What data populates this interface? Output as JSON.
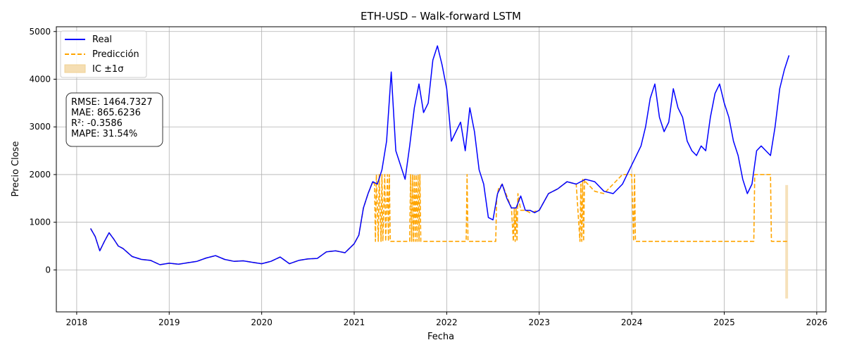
{
  "chart_data": {
    "type": "line",
    "title": "ETH-USD – Walk-forward LSTM",
    "xlabel": "Fecha",
    "ylabel": "Precio Close",
    "xlim": [
      2017.78,
      2026.1
    ],
    "ylim": [
      -880,
      5100
    ],
    "x_ticks": [
      2018,
      2019,
      2020,
      2021,
      2022,
      2023,
      2024,
      2025,
      2026
    ],
    "x_tick_labels": [
      "2018",
      "2019",
      "2020",
      "2021",
      "2022",
      "2023",
      "2024",
      "2025",
      "2026"
    ],
    "y_ticks": [
      0,
      1000,
      2000,
      3000,
      4000,
      5000
    ],
    "y_tick_labels": [
      "0",
      "1000",
      "2000",
      "3000",
      "4000",
      "5000"
    ],
    "grid": true,
    "legend_position": "top-left",
    "stats_box": [
      "RMSE: 1464.7327",
      "MAE: 865.6236",
      "R²: -0.3586",
      "MAPE: 31.54%"
    ],
    "colors": {
      "real": "#0000ff",
      "prediccion": "#ffa500",
      "ic": "#f5deb3"
    },
    "series": [
      {
        "name": "Real",
        "style": "solid",
        "x": [
          2018.15,
          2018.2,
          2018.25,
          2018.3,
          2018.35,
          2018.4,
          2018.45,
          2018.5,
          2018.6,
          2018.7,
          2018.8,
          2018.9,
          2019.0,
          2019.1,
          2019.2,
          2019.3,
          2019.4,
          2019.5,
          2019.6,
          2019.7,
          2019.8,
          2019.9,
          2020.0,
          2020.1,
          2020.2,
          2020.3,
          2020.4,
          2020.5,
          2020.6,
          2020.7,
          2020.8,
          2020.9,
          2021.0,
          2021.05,
          2021.1,
          2021.15,
          2021.2,
          2021.25,
          2021.3,
          2021.35,
          2021.4,
          2021.45,
          2021.5,
          2021.55,
          2021.6,
          2021.65,
          2021.7,
          2021.75,
          2021.8,
          2021.85,
          2021.9,
          2021.95,
          2022.0,
          2022.05,
          2022.1,
          2022.15,
          2022.2,
          2022.25,
          2022.3,
          2022.35,
          2022.4,
          2022.45,
          2022.5,
          2022.55,
          2022.6,
          2022.65,
          2022.7,
          2022.75,
          2022.8,
          2022.85,
          2022.9,
          2022.95,
          2023.0,
          2023.1,
          2023.2,
          2023.3,
          2023.4,
          2023.5,
          2023.6,
          2023.7,
          2023.8,
          2023.9,
          2024.0,
          2024.05,
          2024.1,
          2024.15,
          2024.2,
          2024.25,
          2024.3,
          2024.35,
          2024.4,
          2024.45,
          2024.5,
          2024.55,
          2024.6,
          2024.65,
          2024.7,
          2024.75,
          2024.8,
          2024.85,
          2024.9,
          2024.95,
          2025.0,
          2025.05,
          2025.1,
          2025.15,
          2025.2,
          2025.25,
          2025.3,
          2025.35,
          2025.4,
          2025.45,
          2025.5,
          2025.55,
          2025.6,
          2025.65,
          2025.7
        ],
        "y": [
          870,
          700,
          400,
          600,
          780,
          650,
          500,
          450,
          280,
          220,
          200,
          110,
          140,
          120,
          150,
          180,
          250,
          300,
          220,
          180,
          190,
          160,
          130,
          180,
          270,
          130,
          200,
          230,
          240,
          380,
          400,
          360,
          550,
          730,
          1300,
          1600,
          1850,
          1800,
          2100,
          2700,
          4150,
          2500,
          2200,
          1900,
          2600,
          3400,
          3900,
          3300,
          3500,
          4400,
          4700,
          4300,
          3800,
          2700,
          2900,
          3100,
          2500,
          3400,
          2900,
          2100,
          1800,
          1100,
          1050,
          1600,
          1800,
          1500,
          1300,
          1300,
          1550,
          1250,
          1250,
          1200,
          1250,
          1600,
          1700,
          1850,
          1800,
          1900,
          1850,
          1650,
          1600,
          1800,
          2200,
          2400,
          2600,
          3000,
          3600,
          3900,
          3200,
          2900,
          3100,
          3800,
          3400,
          3200,
          2700,
          2500,
          2400,
          2600,
          2500,
          3200,
          3700,
          3900,
          3500,
          3200,
          2700,
          2400,
          1900,
          1600,
          1800,
          2500,
          2600,
          2500,
          2400,
          3000,
          3800,
          4200,
          4500
        ]
      },
      {
        "name": "Predicción",
        "style": "dashed",
        "x": [
          2018.15,
          2018.2,
          2018.25,
          2018.3,
          2018.35,
          2018.4,
          2018.45,
          2018.5,
          2018.6,
          2018.7,
          2018.8,
          2018.9,
          2019.0,
          2019.1,
          2019.2,
          2019.3,
          2019.4,
          2019.5,
          2019.6,
          2019.7,
          2019.8,
          2019.9,
          2020.0,
          2020.1,
          2020.2,
          2020.3,
          2020.4,
          2020.5,
          2020.6,
          2020.7,
          2020.8,
          2020.9,
          2021.0,
          2021.05,
          2021.1,
          2021.15,
          2021.2,
          2021.22,
          2021.23,
          2021.24,
          2021.26,
          2021.27,
          2021.29,
          2021.3,
          2021.31,
          2021.33,
          2021.34,
          2021.36,
          2021.37,
          2021.38,
          2021.39,
          2021.4,
          2021.6,
          2021.61,
          2021.62,
          2021.63,
          2021.64,
          2021.65,
          2021.66,
          2021.67,
          2021.68,
          2021.69,
          2021.7,
          2021.71,
          2021.72,
          2022.21,
          2022.22,
          2022.23,
          2022.53,
          2022.54,
          2022.56,
          2022.6,
          2022.65,
          2022.7,
          2022.72,
          2022.73,
          2022.74,
          2022.75,
          2022.76,
          2022.77,
          2022.8,
          2022.85,
          2022.9,
          2023.0,
          2023.1,
          2023.2,
          2023.3,
          2023.4,
          2023.44,
          2023.45,
          2023.46,
          2023.47,
          2023.48,
          2023.49,
          2023.5,
          2023.6,
          2023.7,
          2023.8,
          2023.9,
          2024.0,
          2024.02,
          2024.03,
          2024.04,
          2025.32,
          2025.33,
          2025.35,
          2025.45,
          2025.5,
          2025.51,
          2025.58,
          2025.68
        ],
        "y": [
          870,
          700,
          400,
          600,
          780,
          650,
          500,
          450,
          280,
          220,
          200,
          110,
          140,
          120,
          150,
          180,
          250,
          300,
          220,
          180,
          190,
          160,
          130,
          180,
          270,
          130,
          200,
          230,
          240,
          380,
          400,
          360,
          550,
          730,
          1300,
          1600,
          1850,
          1800,
          600,
          2000,
          600,
          2000,
          600,
          2000,
          600,
          2000,
          600,
          2000,
          600,
          2000,
          600,
          600,
          600,
          2000,
          600,
          2000,
          600,
          2000,
          600,
          2000,
          600,
          2000,
          600,
          2000,
          600,
          600,
          2000,
          600,
          600,
          1500,
          1700,
          1800,
          1550,
          1300,
          600,
          1300,
          600,
          1300,
          600,
          1600,
          1250,
          1250,
          1200,
          1250,
          1600,
          1700,
          1850,
          1800,
          600,
          1800,
          600,
          1900,
          600,
          1900,
          1850,
          1650,
          1600,
          1800,
          2000,
          2000,
          600,
          2000,
          600,
          600,
          2000,
          2000,
          2000,
          2000,
          600,
          600,
          600
        ]
      }
    ],
    "ic_band": {
      "name": "IC ±1σ",
      "x": [
        2025.66,
        2025.69
      ],
      "low": -600,
      "high": 1780
    }
  }
}
